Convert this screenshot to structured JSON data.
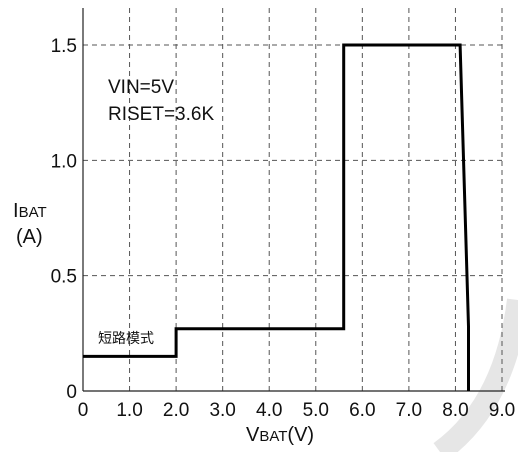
{
  "chart_data": {
    "type": "line",
    "xlabel": {
      "main": "V",
      "sub": "BAT",
      "unit": "(V)"
    },
    "ylabel": {
      "main": "I",
      "sub": "BAT",
      "unit": "(A)"
    },
    "xlim": [
      0,
      9.0
    ],
    "ylim": [
      0,
      1.5
    ],
    "grid": true,
    "x_ticks": [
      {
        "value": 0,
        "label": "0"
      },
      {
        "value": 1,
        "label": "1.0"
      },
      {
        "value": 2,
        "label": "2.0"
      },
      {
        "value": 3,
        "label": "3.0"
      },
      {
        "value": 4,
        "label": "4.0"
      },
      {
        "value": 5,
        "label": "5.0"
      },
      {
        "value": 6,
        "label": "6.0"
      },
      {
        "value": 7,
        "label": "7.0"
      },
      {
        "value": 8,
        "label": "8.0"
      },
      {
        "value": 9,
        "label": "9.0"
      }
    ],
    "y_ticks": [
      {
        "value": 0,
        "label": "0"
      },
      {
        "value": 0.5,
        "label": "0.5"
      },
      {
        "value": 1.0,
        "label": "1.0"
      },
      {
        "value": 1.5,
        "label": "1.5"
      }
    ],
    "series": [
      {
        "x": [
          0,
          2.0,
          2.0,
          5.6,
          5.6,
          8.1,
          8.28,
          8.28
        ],
        "y": [
          0.15,
          0.15,
          0.27,
          0.27,
          1.5,
          1.5,
          0.28,
          0
        ]
      }
    ],
    "annotations": [
      {
        "text": "VIN=5V"
      },
      {
        "text": "RISET=3.6K"
      },
      {
        "text": "短路模式"
      }
    ],
    "colors": {
      "line": "#000000",
      "grid": "#555555"
    }
  }
}
